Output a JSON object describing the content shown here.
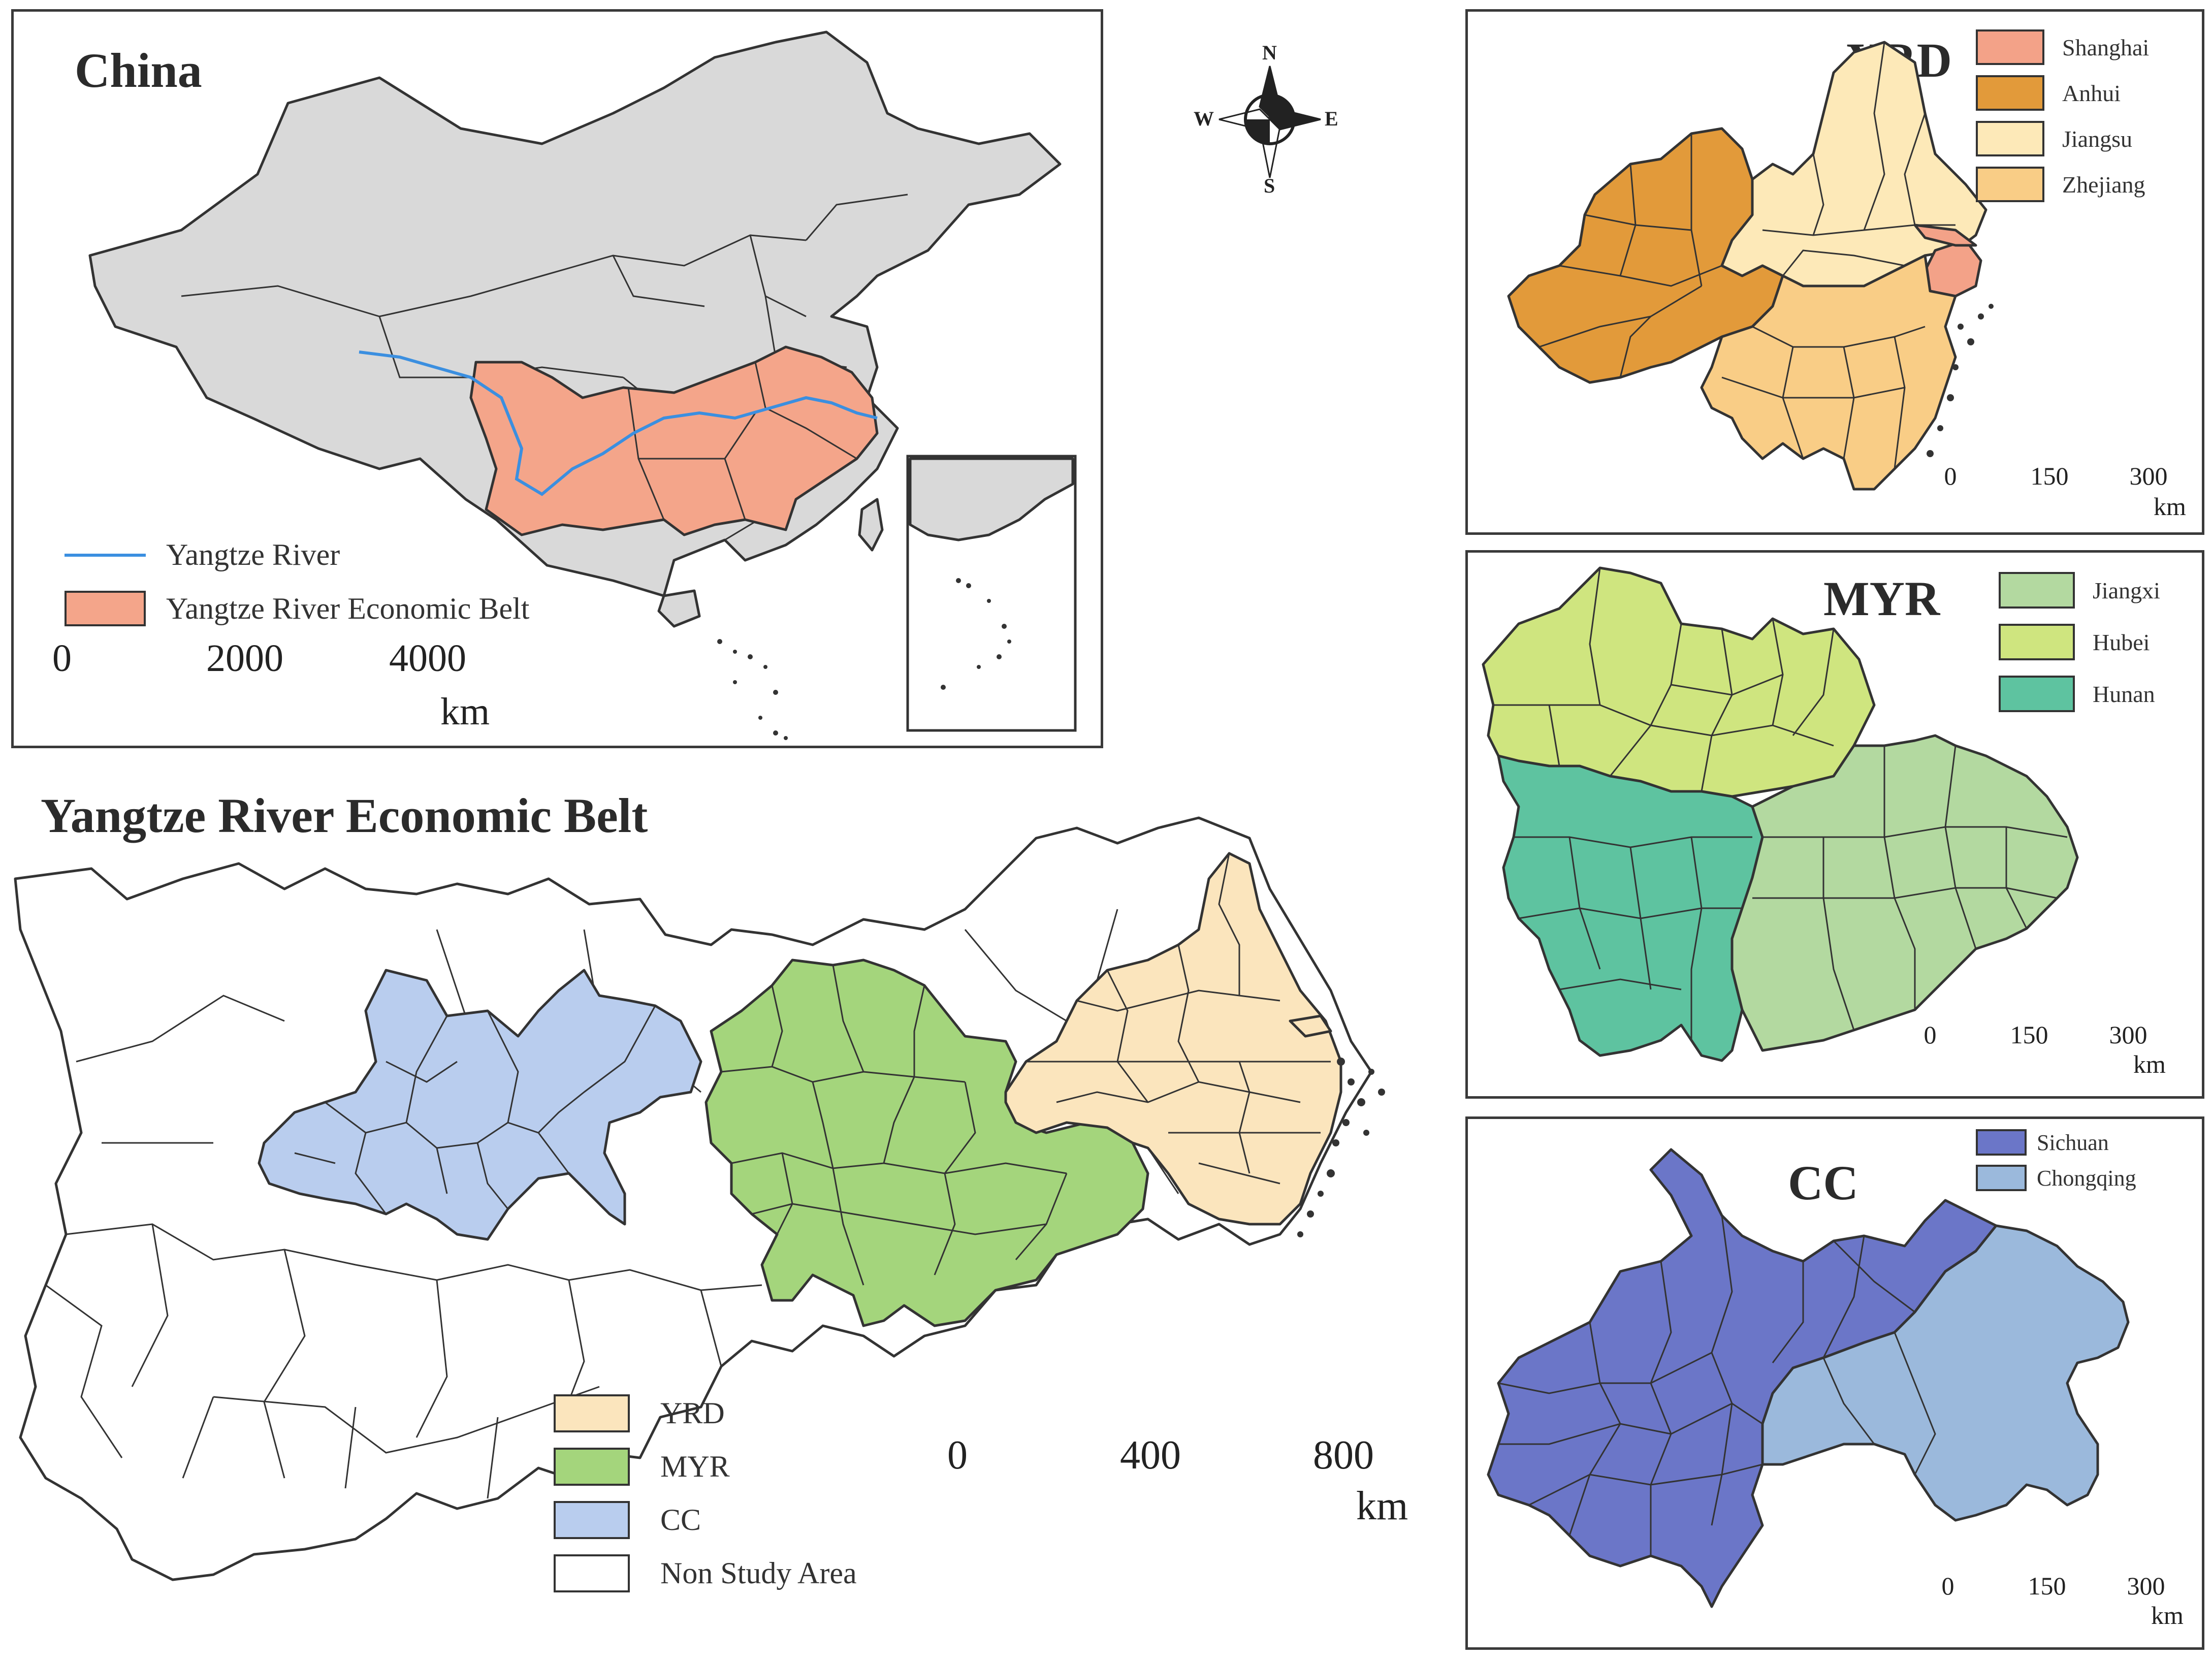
{
  "china_panel": {
    "title": "China",
    "legend": [
      {
        "label": "Yangtze River",
        "kind": "line",
        "color": "#3b8fe0"
      },
      {
        "label": "Yangtze River Economic Belt",
        "kind": "patch",
        "color": "#f4a58a"
      }
    ],
    "scale": {
      "ticks": [
        "0",
        "2000",
        "4000"
      ],
      "unit": "km"
    }
  },
  "compass": {
    "n": "N",
    "s": "S",
    "e": "E",
    "w": "W"
  },
  "main_panel": {
    "title": "Yangtze River Economic Belt",
    "legend": [
      {
        "label": "YRD",
        "color": "#fbe5bd"
      },
      {
        "label": "MYR",
        "color": "#a4d57c"
      },
      {
        "label": "CC",
        "color": "#b9cdee"
      },
      {
        "label": "Non Study Area",
        "color": "#ffffff"
      }
    ],
    "scale": {
      "ticks": [
        "0",
        "400",
        "800"
      ],
      "unit": "km"
    }
  },
  "yrd_panel": {
    "title": "YRD",
    "legend": [
      {
        "label": "Shanghai",
        "color": "#f3a288"
      },
      {
        "label": "Anhui",
        "color": "#e29a3a"
      },
      {
        "label": "Jiangsu",
        "color": "#fde9b8"
      },
      {
        "label": "Zhejiang",
        "color": "#f9cd86"
      }
    ],
    "scale": {
      "ticks": [
        "0",
        "150",
        "300"
      ],
      "unit": "km"
    }
  },
  "myr_panel": {
    "title": "MYR",
    "legend": [
      {
        "label": "Jiangxi",
        "color": "#b3d9a0"
      },
      {
        "label": "Hubei",
        "color": "#cfe57f"
      },
      {
        "label": "Hunan",
        "color": "#5ec3a0"
      }
    ],
    "scale": {
      "ticks": [
        "0",
        "150",
        "300"
      ],
      "unit": "km"
    }
  },
  "cc_panel": {
    "title": "CC",
    "legend": [
      {
        "label": "Sichuan",
        "color": "#6b76c8"
      },
      {
        "label": "Chongqing",
        "color": "#9bb9dc"
      }
    ],
    "scale": {
      "ticks": [
        "0",
        "150",
        "300"
      ],
      "unit": "km"
    }
  }
}
